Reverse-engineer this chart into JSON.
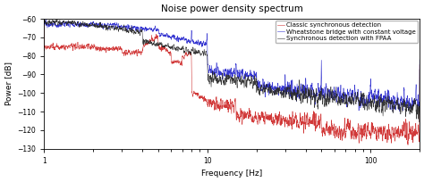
{
  "title": "Noise power density spectrum",
  "xlabel": "Frequency [Hz]",
  "ylabel": "Power [dB]",
  "xlim": [
    1,
    200
  ],
  "ylim": [
    -130,
    -60
  ],
  "yticks": [
    -130,
    -120,
    -110,
    -100,
    -90,
    -80,
    -70,
    -60
  ],
  "legend": [
    "Synchronous detection with FPAA",
    "Wheatstone bridge with constant voltage",
    "Classic synchronous detection"
  ],
  "bg_color": "#ffffff",
  "fig_bg": "#ffffff",
  "black_color": "#222222",
  "blue_color": "#2222cc",
  "red_color": "#cc2222"
}
